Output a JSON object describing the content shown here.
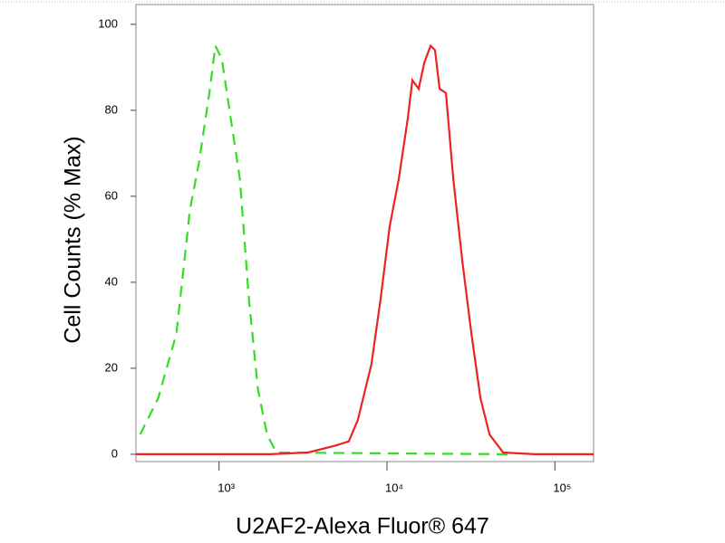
{
  "chart_data": {
    "type": "line",
    "x_label": "U2AF2-Alexa Fluor® 647",
    "y_label": "Cell Counts (% Max)",
    "x_scale": "log",
    "xlim": [
      320,
      170000
    ],
    "xticks": [
      {
        "value": 1000,
        "label": "10³"
      },
      {
        "value": 10000,
        "label": "10⁴"
      },
      {
        "value": 100000,
        "label": "10⁵"
      }
    ],
    "ylim": [
      -1.7,
      104.6
    ],
    "yticks": [
      0,
      20,
      40,
      60,
      80,
      100
    ],
    "series": [
      {
        "color": "#33dd22",
        "line_style": "dashed",
        "x": [
          339,
          434,
          557,
          672,
          761,
          883,
          950,
          1038,
          1176,
          1331,
          1507,
          1707,
          1933,
          2190,
          52400
        ],
        "values": [
          4.6,
          13,
          28,
          57,
          68,
          85,
          95,
          92,
          78,
          64,
          36,
          15,
          4.6,
          0.4,
          0
        ]
      },
      {
        "color": "#ee2222",
        "line_style": "solid",
        "x": [
          320,
          2000,
          3390,
          4920,
          5930,
          6710,
          8090,
          9160,
          10380,
          11750,
          13300,
          14160,
          15450,
          16660,
          18170,
          19330,
          20590,
          22460,
          24820,
          28100,
          31840,
          36060,
          40830,
          49200,
          76000,
          170000
        ],
        "values": [
          0,
          0,
          0.4,
          2,
          3,
          8,
          21,
          36,
          53,
          64,
          78,
          87,
          85,
          91,
          95,
          94,
          85,
          84,
          64,
          45,
          28,
          13,
          4.6,
          0.4,
          0,
          0
        ]
      }
    ]
  }
}
